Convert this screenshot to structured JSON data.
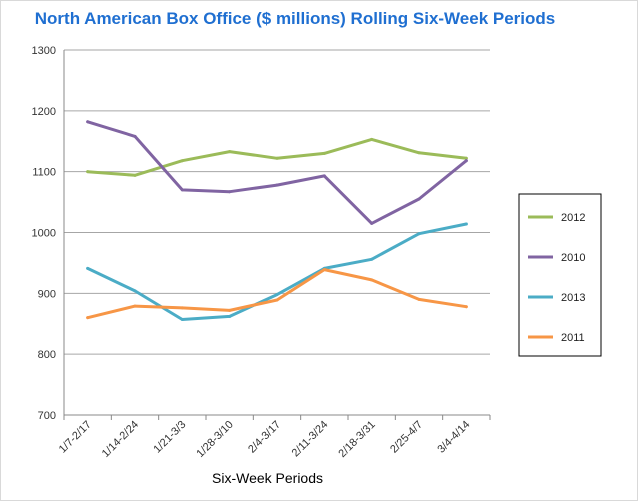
{
  "chart_data": {
    "type": "line",
    "title": "North American Box Office ($ millions) Rolling Six-Week Periods",
    "xlabel": "Six-Week Periods",
    "ylabel": "",
    "ylim": [
      700,
      1300
    ],
    "yticks": [
      700,
      800,
      900,
      1000,
      1100,
      1200,
      1300
    ],
    "grid": true,
    "legend_position": "right",
    "categories": [
      "1/7-2/17",
      "1/14-2/24",
      "1/21-3/3",
      "1/28-3/10",
      "2/4-3/17",
      "2/11-3/24",
      "2/18-3/31",
      "2/25-4/7",
      "3/4-4/14"
    ],
    "series": [
      {
        "name": "2012",
        "color": "#9bbb59",
        "values": [
          1100,
          1094,
          1118,
          1133,
          1122,
          1130,
          1153,
          1131,
          1122
        ]
      },
      {
        "name": "2010",
        "color": "#8064a2",
        "values": [
          1182,
          1158,
          1070,
          1067,
          1078,
          1093,
          1015,
          1055,
          1118
        ]
      },
      {
        "name": "2013",
        "color": "#4bacc6",
        "values": [
          941,
          904,
          857,
          862,
          898,
          941,
          956,
          998,
          1014
        ]
      },
      {
        "name": "2011",
        "color": "#f79646",
        "values": [
          860,
          879,
          876,
          872,
          889,
          939,
          922,
          890,
          878
        ]
      }
    ]
  }
}
